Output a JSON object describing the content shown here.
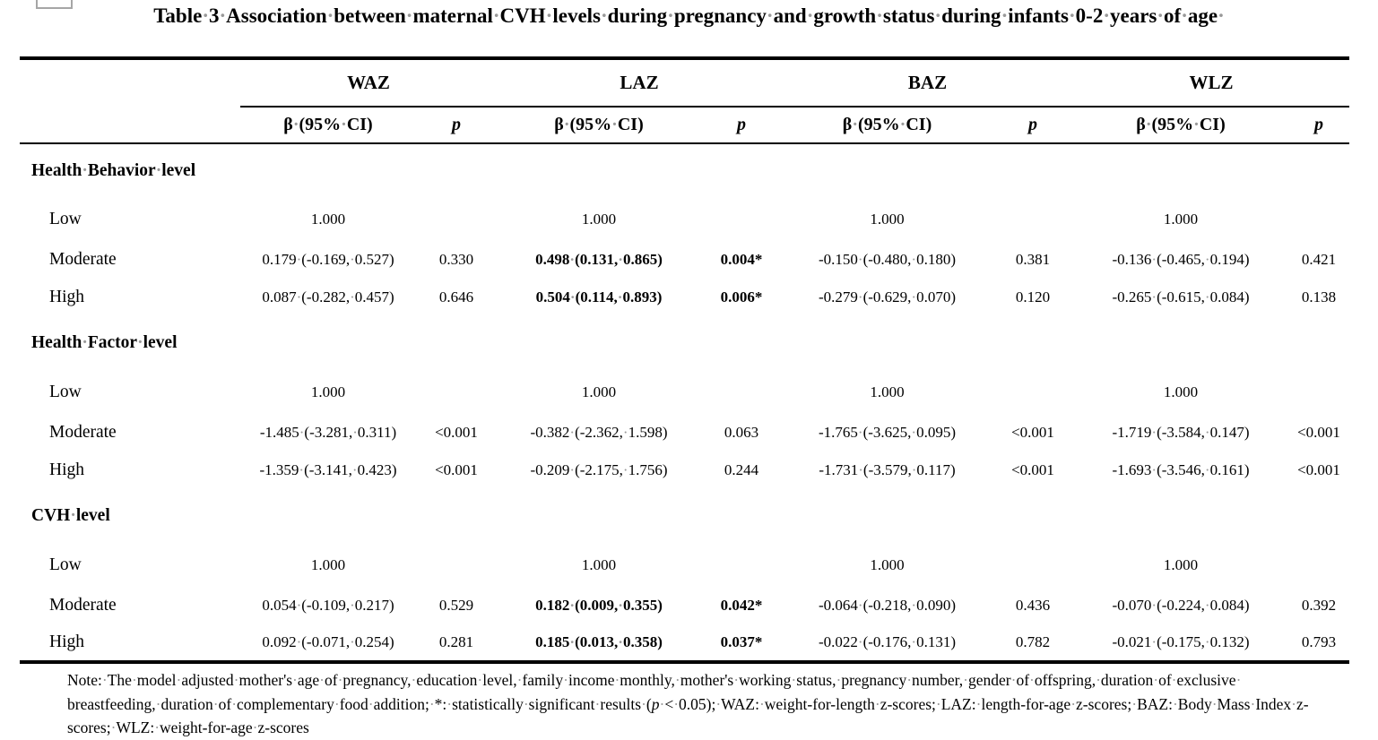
{
  "title": "Table 3 Association between maternal CVH levels during pregnancy and growth status during infants 0-2 years of age ",
  "header": {
    "groups": [
      "WAZ",
      "LAZ",
      "BAZ",
      "WLZ"
    ],
    "beta_label": "β (95% CI)",
    "p_label": "p"
  },
  "sections": [
    {
      "label": "Health Behavior level",
      "rows": [
        {
          "label": "Low",
          "cells": [
            "1.000",
            "",
            "1.000",
            "",
            "1.000",
            "",
            "1.000",
            ""
          ]
        },
        {
          "label": "Moderate",
          "cells": [
            "0.179 (-0.169, 0.527)",
            "0.330",
            "0.498 (0.131, 0.865)",
            "0.004*",
            "-0.150 (-0.480, 0.180)",
            "0.381",
            "-0.136 (-0.465, 0.194)",
            "0.421"
          ]
        },
        {
          "label": "High",
          "cells": [
            "0.087 (-0.282, 0.457)",
            "0.646",
            "0.504 (0.114, 0.893)",
            "0.006*",
            "-0.279 (-0.629, 0.070)",
            "0.120",
            "-0.265 (-0.615, 0.084)",
            "0.138"
          ]
        }
      ]
    },
    {
      "label": "Health Factor level",
      "rows": [
        {
          "label": "Low",
          "cells": [
            "1.000",
            "",
            "1.000",
            "",
            "1.000",
            "",
            "1.000",
            ""
          ]
        },
        {
          "label": "Moderate",
          "cells": [
            "-1.485 (-3.281, 0.311)",
            "<0.001",
            "-0.382 (-2.362, 1.598)",
            "0.063",
            "-1.765 (-3.625, 0.095)",
            "<0.001",
            "-1.719 (-3.584, 0.147)",
            "<0.001"
          ]
        },
        {
          "label": "High",
          "cells": [
            "-1.359 (-3.141, 0.423)",
            "<0.001",
            "-0.209 (-2.175, 1.756)",
            "0.244",
            "-1.731 (-3.579, 0.117)",
            "<0.001",
            "-1.693 (-3.546, 0.161)",
            "<0.001"
          ]
        }
      ]
    },
    {
      "label": "CVH level",
      "rows": [
        {
          "label": "Low",
          "cells": [
            "1.000",
            "",
            "1.000",
            "",
            "1.000",
            "",
            "1.000",
            ""
          ]
        },
        {
          "label": "Moderate",
          "cells": [
            "0.054 (-0.109, 0.217)",
            "0.529",
            "0.182 (0.009, 0.355)",
            "0.042*",
            "-0.064 (-0.218, 0.090)",
            "0.436",
            "-0.070 (-0.224, 0.084)",
            "0.392"
          ]
        },
        {
          "label": "High",
          "cells": [
            "0.092 (-0.071, 0.254)",
            "0.281",
            "0.185 (0.013, 0.358)",
            "0.037*",
            "-0.022 (-0.176, 0.131)",
            "0.782",
            "-0.021 (-0.175, 0.132)",
            "0.793"
          ]
        }
      ]
    }
  ],
  "footnote": {
    "line1": "Note: The model adjusted mother's age of pregnancy, education level, family income monthly, mother's working status, pregnancy number, gender of offspring, duration of exclusive ",
    "line2a": "breastfeeding, duration of complementary food addition; *: statistically significant results (",
    "line2_italic": "p",
    "line2b": " < 0.05); WAZ: weight-for-length z-scores; LAZ: length-for-age z-scores; BAZ: Body Mass Index z-",
    "line3": "scores; WLZ: weight-for-age z-scores"
  }
}
